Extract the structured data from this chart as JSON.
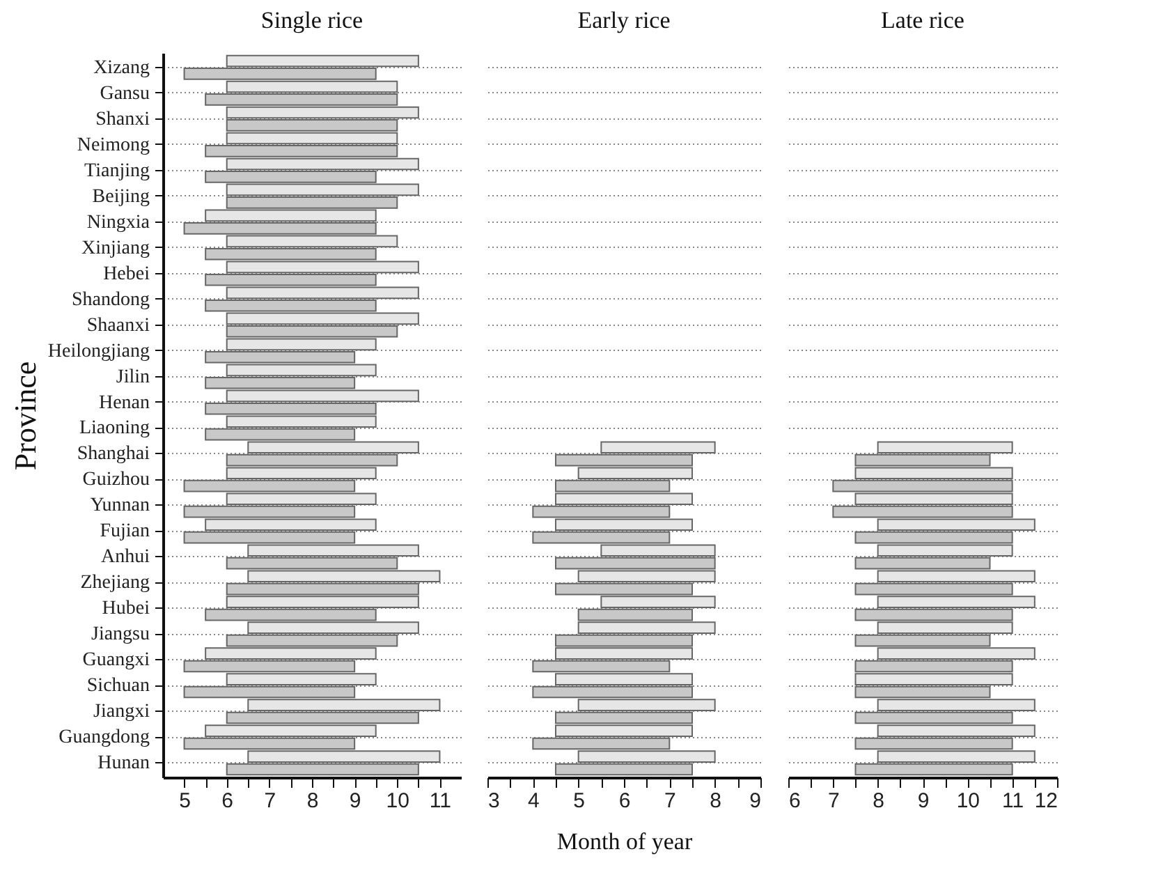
{
  "chart_data": [
    {
      "type": "bar",
      "orientation": "horizontal",
      "title": "Single rice",
      "ylabel": "Province",
      "grid": "y",
      "categories": [
        "Xizang",
        "Gansu",
        "Shanxi",
        "Neimong",
        "Tianjing",
        "Beijing",
        "Ningxia",
        "Xinjiang",
        "Hebei",
        "Shandong",
        "Shaanxi",
        "Heilongjiang",
        "Jilin",
        "Henan",
        "Liaoning",
        "Shanghai",
        "Guizhou",
        "Yunnan",
        "Fujian",
        "Anhui",
        "Zhejiang",
        "Hubei",
        "Jiangsu",
        "Guangxi",
        "Sichuan",
        "Jiangxi",
        "Guangdong",
        "Hunan"
      ],
      "xlim": [
        4.5,
        11.5
      ],
      "xticks": [
        5,
        {
          "value": 5.5,
          "label": null
        },
        6,
        {
          "value": 6.5,
          "label": null
        },
        7,
        {
          "value": 7.5,
          "label": null
        },
        8,
        {
          "value": 8.5,
          "label": null
        },
        9,
        {
          "value": 9.5,
          "label": null
        },
        10,
        {
          "value": 10.5,
          "label": null
        },
        11
      ],
      "series": [
        {
          "color": "#e6e6e6",
          "base": [
            6,
            6,
            6,
            6,
            6,
            6,
            5.5,
            6,
            6,
            6,
            6,
            6,
            6,
            6,
            6,
            6.5,
            6,
            6,
            5.5,
            6.5,
            6.5,
            6,
            6.5,
            5.5,
            6,
            6.5,
            5.5,
            6.5
          ],
          "values": [
            4.5,
            4,
            4.5,
            4,
            4.5,
            4.5,
            4,
            4,
            4.5,
            4.5,
            4.5,
            3.5,
            3.5,
            4.5,
            3.5,
            4,
            3.5,
            3.5,
            4,
            4,
            4.5,
            4.5,
            4,
            4,
            3.5,
            4.5,
            4,
            4.5
          ]
        },
        {
          "color": "#c8c8c8",
          "base": [
            5,
            5.5,
            6,
            5.5,
            5.5,
            6,
            5,
            5.5,
            5.5,
            5.5,
            6,
            5.5,
            5.5,
            5.5,
            5.5,
            6,
            5,
            5,
            5,
            6,
            6,
            5.5,
            6,
            5,
            5,
            6,
            5,
            6
          ],
          "values": [
            4.5,
            4.5,
            4,
            4.5,
            4,
            4,
            4.5,
            4,
            4,
            4,
            4,
            3.5,
            3.5,
            4,
            3.5,
            4,
            4,
            4,
            4,
            4,
            4.5,
            4,
            4,
            4,
            4,
            4.5,
            4,
            4.5
          ]
        }
      ]
    },
    {
      "type": "bar",
      "orientation": "horizontal",
      "title": "Early rice",
      "xlabel": "Month of year",
      "grid": "y",
      "tick_labels": "x",
      "categories": [
        null,
        null,
        null,
        null,
        null,
        null,
        null,
        null,
        null,
        null,
        null,
        null,
        null,
        null,
        null,
        null,
        null,
        null,
        null,
        null,
        null,
        null,
        null,
        null,
        null,
        null,
        null,
        null
      ],
      "xlim": [
        3,
        9
      ],
      "xticks": [
        3,
        {
          "value": 3.5,
          "label": null
        },
        4,
        {
          "value": 4.5,
          "label": null
        },
        5,
        {
          "value": 5.5,
          "label": null
        },
        6,
        {
          "value": 6.5,
          "label": null
        },
        7,
        {
          "value": 7.5,
          "label": null
        },
        8,
        {
          "value": 8.5,
          "label": null
        },
        9
      ],
      "series": [
        {
          "color": "#e6e6e6",
          "base": [
            null,
            null,
            null,
            null,
            null,
            null,
            null,
            null,
            null,
            null,
            null,
            null,
            null,
            null,
            null,
            5.5,
            5,
            4.5,
            4.5,
            5.5,
            5,
            5.5,
            5,
            4.5,
            4.5,
            5,
            4.5,
            5
          ],
          "values": [
            null,
            null,
            null,
            null,
            null,
            null,
            null,
            null,
            null,
            null,
            null,
            null,
            null,
            null,
            null,
            2.5,
            2.5,
            3,
            3,
            2.5,
            3,
            2.5,
            3,
            3,
            3,
            3,
            3,
            3
          ]
        },
        {
          "color": "#c8c8c8",
          "base": [
            null,
            null,
            null,
            null,
            null,
            null,
            null,
            null,
            null,
            null,
            null,
            null,
            null,
            null,
            null,
            4.5,
            4.5,
            4,
            4,
            4.5,
            4.5,
            5,
            4.5,
            4,
            4,
            4.5,
            4,
            4.5
          ],
          "values": [
            null,
            null,
            null,
            null,
            null,
            null,
            null,
            null,
            null,
            null,
            null,
            null,
            null,
            null,
            null,
            3,
            2.5,
            3,
            3,
            3.5,
            3,
            2.5,
            3,
            3,
            3.5,
            3,
            3,
            3
          ]
        }
      ]
    },
    {
      "type": "bar",
      "orientation": "horizontal",
      "title": "Late rice",
      "grid": "y",
      "tick_labels": "x",
      "categories": [
        null,
        null,
        null,
        null,
        null,
        null,
        null,
        null,
        null,
        null,
        null,
        null,
        null,
        null,
        null,
        null,
        null,
        null,
        null,
        null,
        null,
        null,
        null,
        null,
        null,
        null,
        null,
        null
      ],
      "xlim": [
        6,
        12
      ],
      "xticks": [
        6,
        {
          "value": 6.5,
          "label": null
        },
        7,
        {
          "value": 7.5,
          "label": null
        },
        8,
        {
          "value": 8.5,
          "label": null
        },
        9,
        {
          "value": 9.5,
          "label": null
        },
        10,
        {
          "value": 10.5,
          "label": null
        },
        11,
        {
          "value": 11.5,
          "label": null
        },
        12
      ],
      "series": [
        {
          "color": "#e6e6e6",
          "base": [
            null,
            null,
            null,
            null,
            null,
            null,
            null,
            null,
            null,
            null,
            null,
            null,
            null,
            null,
            null,
            8,
            7.5,
            7.5,
            8,
            8,
            8,
            8,
            8,
            8,
            7.5,
            8,
            8,
            8
          ],
          "values": [
            null,
            null,
            null,
            null,
            null,
            null,
            null,
            null,
            null,
            null,
            null,
            null,
            null,
            null,
            null,
            3,
            3.5,
            3.5,
            3.5,
            3,
            3.5,
            3.5,
            3,
            3.5,
            3.5,
            3.5,
            3.5,
            3.5
          ]
        },
        {
          "color": "#c8c8c8",
          "base": [
            null,
            null,
            null,
            null,
            null,
            null,
            null,
            null,
            null,
            null,
            null,
            null,
            null,
            null,
            null,
            7.5,
            7,
            7,
            7.5,
            7.5,
            7.5,
            7.5,
            7.5,
            7.5,
            7.5,
            7.5,
            7.5,
            7.5
          ],
          "values": [
            null,
            null,
            null,
            null,
            null,
            null,
            null,
            null,
            null,
            null,
            null,
            null,
            null,
            null,
            null,
            3,
            4,
            4,
            3.5,
            3,
            3.5,
            3.5,
            3,
            3.5,
            3,
            3.5,
            3.5,
            3.5
          ]
        }
      ]
    }
  ]
}
